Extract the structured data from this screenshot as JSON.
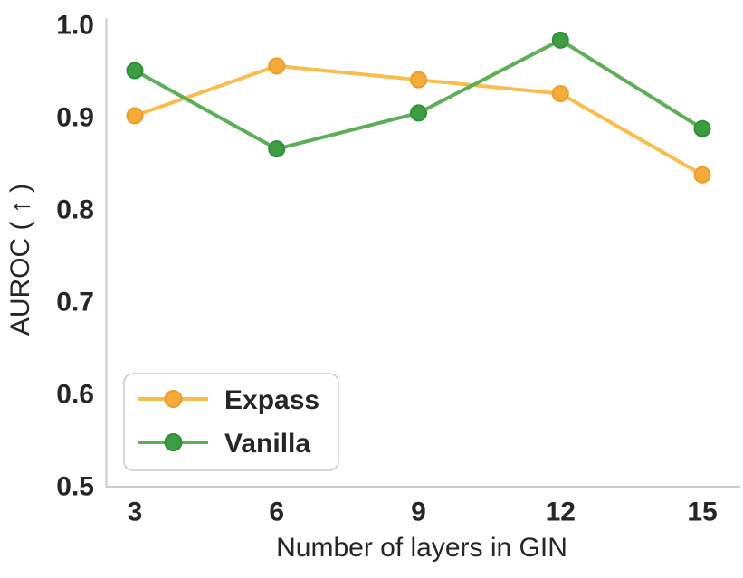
{
  "figure": {
    "background": "#ffffff",
    "text_color": "#262626",
    "spine_color": "#cbcbcb",
    "legend_border_color": "#cccccc",
    "legend_background": "#ffffff"
  },
  "chart_data": {
    "type": "line",
    "title": "",
    "xlabel": "Number of layers in GIN",
    "ylabel": "AUROC ( ↑ )",
    "x": [
      3,
      6,
      9,
      12,
      15
    ],
    "x_tick_labels": [
      "3",
      "6",
      "9",
      "12",
      "15"
    ],
    "y_ticks": [
      0.5,
      0.6,
      0.7,
      0.8,
      0.9,
      1.0
    ],
    "xlim": [
      3,
      15
    ],
    "ylim": [
      0.5,
      1.0
    ],
    "grid": false,
    "legend_position": "lower-left",
    "series": [
      {
        "name": "Expass",
        "color": "#FBBC4C",
        "marker_color": "#F5AB3B",
        "marker_edge_color": "#EC9D29",
        "values": [
          0.902,
          0.956,
          0.941,
          0.926,
          0.838
        ]
      },
      {
        "name": "Vanilla",
        "color": "#5CAE57",
        "marker_color": "#3E9C42",
        "marker_edge_color": "#2F8F36",
        "values": [
          0.951,
          0.866,
          0.905,
          0.984,
          0.888
        ]
      }
    ]
  }
}
